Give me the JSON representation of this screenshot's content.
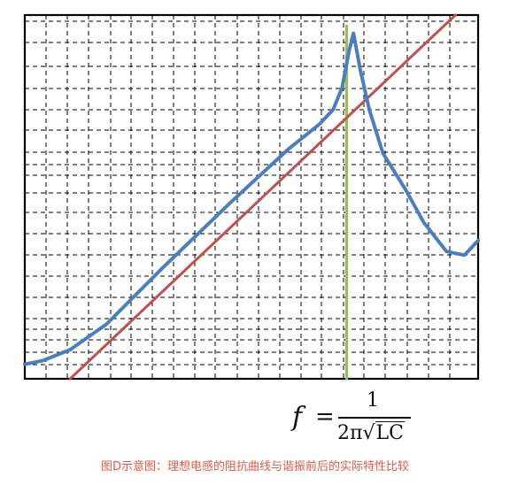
{
  "colors": {
    "frame": "#000000",
    "grid": "#000000",
    "actual_curve": "#4a7ebf",
    "ideal_line": "#c0504d",
    "resonance_line": "#9bbb59",
    "caption": "#e35a47"
  },
  "formula": {
    "variable": "f",
    "equals": "=",
    "numerator": "1",
    "denominator_prefix": "2π",
    "radical": "√",
    "radicand": "LC"
  },
  "caption": "图D示意图：理想电感的阻抗曲线与谐振前后的实际特性比较",
  "chart_data": {
    "type": "line",
    "title": "",
    "xlabel": "",
    "ylabel": "",
    "xlim": [
      0,
      1
    ],
    "ylim": [
      0,
      1
    ],
    "grid": true,
    "series": [
      {
        "x": [
          0,
          0.04,
          0.1,
          0.18,
          0.3,
          0.45,
          0.58,
          0.65,
          0.68,
          0.7,
          0.715,
          0.725,
          0.74,
          0.76,
          0.79,
          0.84,
          0.88,
          0.93,
          0.97,
          1.0
        ],
        "y": [
          0.04,
          0.05,
          0.08,
          0.15,
          0.3,
          0.48,
          0.63,
          0.7,
          0.74,
          0.8,
          0.9,
          0.95,
          0.85,
          0.74,
          0.62,
          0.52,
          0.43,
          0.35,
          0.34,
          0.38
        ]
      },
      {
        "x": [
          0.1,
          0.95
        ],
        "y": [
          0.0,
          1.0
        ]
      },
      {
        "x": [
          0.71,
          0.71
        ],
        "y": [
          0.0,
          0.97
        ]
      }
    ]
  }
}
